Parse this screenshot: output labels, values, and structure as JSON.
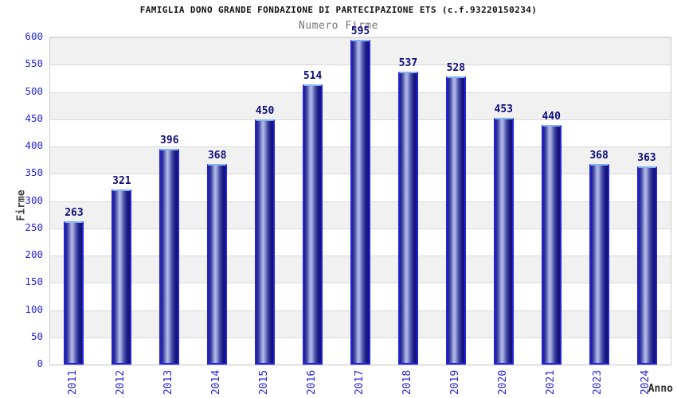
{
  "header": {
    "title": "FAMIGLIA DONO GRANDE FONDAZIONE DI PARTECIPAZIONE ETS (c.f.93220150234)",
    "subtitle": "Numero Firme"
  },
  "chart_data": {
    "type": "bar",
    "title": "FAMIGLIA DONO GRANDE FONDAZIONE DI PARTECIPAZIONE ETS (c.f.93220150234)",
    "subtitle": "Numero Firme",
    "categories": [
      "2011",
      "2012",
      "2013",
      "2014",
      "2015",
      "2016",
      "2017",
      "2018",
      "2019",
      "2020",
      "2021",
      "2023",
      "2024"
    ],
    "values": [
      263,
      321,
      396,
      368,
      450,
      514,
      595,
      537,
      528,
      453,
      440,
      368,
      363
    ],
    "xlabel": "Anno",
    "ylabel": "Firme",
    "ylim": [
      0,
      600
    ],
    "ytick_step": 50,
    "ytick_labels": [
      "0",
      "50",
      "100",
      "150",
      "200",
      "250",
      "300",
      "350",
      "400",
      "450",
      "500",
      "550",
      "600"
    ],
    "grid": "horizontal-bands-alternating",
    "legend_position": "none",
    "colors": {
      "background": "#ffffff",
      "bar_border": "#2323dd",
      "bar_top_edge": "#85b2f0",
      "bar_dark": "#1c1c86",
      "bar_mid": "#474ea8",
      "bar_light": "#b6bce9",
      "bar_darkest": "#101070",
      "value_label": "#0e0e7a",
      "tick_label": "#2626d6",
      "band_gray": "#f1f1f1",
      "band_white": "#ffffff",
      "gridline": "#d9d9d9",
      "axis_line": "#c0c0c0",
      "title": "#111111",
      "subtitle": "#767676",
      "axis_label": "#444444"
    }
  }
}
